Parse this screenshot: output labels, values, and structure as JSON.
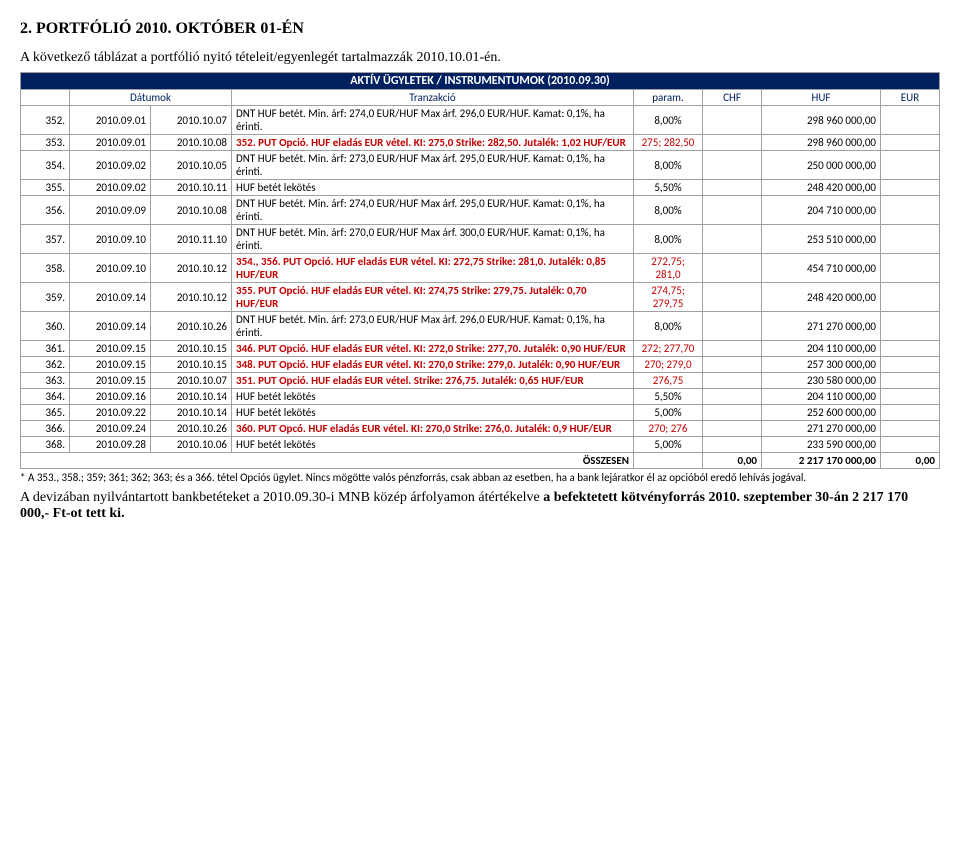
{
  "title": "2.   PORTFÓLIÓ 2010. OKTÓBER 01-ÉN",
  "intro": "A következő táblázat a portfólió nyitó tételeit/egyenlegét tartalmazzák 2010.10.01-én.",
  "banner": "AKTÍV ÜGYLETEK / INSTRUMENTUMOK (2010.09.30)",
  "headers": {
    "blank1": "",
    "dates": "Dátumok",
    "trans": "Tranzakció",
    "param": "param.",
    "chf": "CHF",
    "huf": "HUF",
    "eur": "EUR"
  },
  "rows": [
    {
      "n": "352.",
      "d1": "2010.09.01",
      "d2": "2010.10.07",
      "t": "DNT HUF betét. Min. árf: 274,0 EUR/HUF Max árf. 296,0 EUR/HUF. Kamat: 0,1%, ha érinti.",
      "p": "8,00%",
      "huf": "298 960 000,00",
      "red": false
    },
    {
      "n": "353.",
      "d1": "2010.09.01",
      "d2": "2010.10.08",
      "t": "352. PUT Opció. HUF eladás EUR vétel. KI: 275,0 Strike: 282,50. Jutalék: 1,02 HUF/EUR",
      "p": "275; 282,50",
      "huf": "298 960 000,00",
      "red": true
    },
    {
      "n": "354.",
      "d1": "2010.09.02",
      "d2": "2010.10.05",
      "t": "DNT HUF betét. Min. árf: 273,0 EUR/HUF Max árf. 295,0 EUR/HUF. Kamat: 0,1%, ha érinti.",
      "p": "8,00%",
      "huf": "250 000 000,00",
      "red": false
    },
    {
      "n": "355.",
      "d1": "2010.09.02",
      "d2": "2010.10.11",
      "t": "HUF betét lekötés",
      "p": "5,50%",
      "huf": "248 420 000,00",
      "red": false
    },
    {
      "n": "356.",
      "d1": "2010.09.09",
      "d2": "2010.10.08",
      "t": "DNT HUF betét. Min. árf: 274,0 EUR/HUF Max árf. 295,0 EUR/HUF. Kamat: 0,1%, ha érinti.",
      "p": "8,00%",
      "huf": "204 710 000,00",
      "red": false
    },
    {
      "n": "357.",
      "d1": "2010.09.10",
      "d2": "2010.11.10",
      "t": "DNT HUF betét. Min. árf: 270,0 EUR/HUF Max árf. 300,0 EUR/HUF. Kamat: 0,1%, ha érinti.",
      "p": "8,00%",
      "huf": "253 510 000,00",
      "red": false
    },
    {
      "n": "358.",
      "d1": "2010.09.10",
      "d2": "2010.10.12",
      "t": "354., 356. PUT Opció. HUF eladás EUR vétel. KI: 272,75 Strike: 281,0. Jutalék: 0,85 HUF/EUR",
      "p": "272,75; 281,0",
      "huf": "454 710 000,00",
      "red": true
    },
    {
      "n": "359.",
      "d1": "2010.09.14",
      "d2": "2010.10.12",
      "t": "355. PUT Opció. HUF eladás EUR vétel. KI: 274,75 Strike: 279,75. Jutalék: 0,70 HUF/EUR",
      "p": "274,75; 279,75",
      "huf": "248 420 000,00",
      "red": true
    },
    {
      "n": "360.",
      "d1": "2010.09.14",
      "d2": "2010.10.26",
      "t": "DNT HUF betét. Min. árf: 273,0 EUR/HUF Max árf. 296,0 EUR/HUF. Kamat: 0,1%, ha érinti.",
      "p": "8,00%",
      "huf": "271 270 000,00",
      "red": false
    },
    {
      "n": "361.",
      "d1": "2010.09.15",
      "d2": "2010.10.15",
      "t": "346. PUT Opció. HUF eladás EUR vétel. KI: 272,0 Strike: 277,70. Jutalék: 0,90 HUF/EUR",
      "p": "272; 277,70",
      "huf": "204 110 000,00",
      "red": true
    },
    {
      "n": "362.",
      "d1": "2010.09.15",
      "d2": "2010.10.15",
      "t": "348. PUT Opció. HUF eladás EUR vétel. KI: 270,0 Strike: 279,0. Jutalék: 0,90 HUF/EUR",
      "p": "270; 279,0",
      "huf": "257 300 000,00",
      "red": true
    },
    {
      "n": "363.",
      "d1": "2010.09.15",
      "d2": "2010.10.07",
      "t": "351. PUT Opció. HUF eladás EUR vétel. Strike: 276,75. Jutalék: 0,65 HUF/EUR",
      "p": "276,75",
      "huf": "230 580 000,00",
      "red": true
    },
    {
      "n": "364.",
      "d1": "2010.09.16",
      "d2": "2010.10.14",
      "t": "HUF betét lekötés",
      "p": "5,50%",
      "huf": "204 110 000,00",
      "red": false
    },
    {
      "n": "365.",
      "d1": "2010.09.22",
      "d2": "2010.10.14",
      "t": "HUF betét lekötés",
      "p": "5,00%",
      "huf": "252 600 000,00",
      "red": false
    },
    {
      "n": "366.",
      "d1": "2010.09.24",
      "d2": "2010.10.26",
      "t": "360. PUT Opcó. HUF eladás EUR vétel. KI: 270,0 Strike: 276,0. Jutalék: 0,9 HUF/EUR",
      "p": "270; 276",
      "huf": "271 270 000,00",
      "red": true
    },
    {
      "n": "368.",
      "d1": "2010.09.28",
      "d2": "2010.10.06",
      "t": "HUF betét lekötés",
      "p": "5,00%",
      "huf": "233 590 000,00",
      "red": false
    }
  ],
  "sum": {
    "label": "ÖSSZESEN",
    "chf": "0,00",
    "huf": "2 217 170 000,00",
    "eur": "0,00"
  },
  "footnote": "* A 353., 358.; 359; 361; 362; 363; és a 366. tétel Opciós ügylet. Nincs mögötte valós pénzforrás, csak abban az esetben, ha a bank lejáratkor él az opcióból eredő lehívás jogával.",
  "closing_a": "A devizában nyilvántartott bankbetéteket a 2010.09.30-i MNB közép árfolyamon átértékelve ",
  "closing_b": "a befektetett kötvényforrás 2010. szeptember 30-án 2 217 170 000,- Ft-ot tett ki."
}
